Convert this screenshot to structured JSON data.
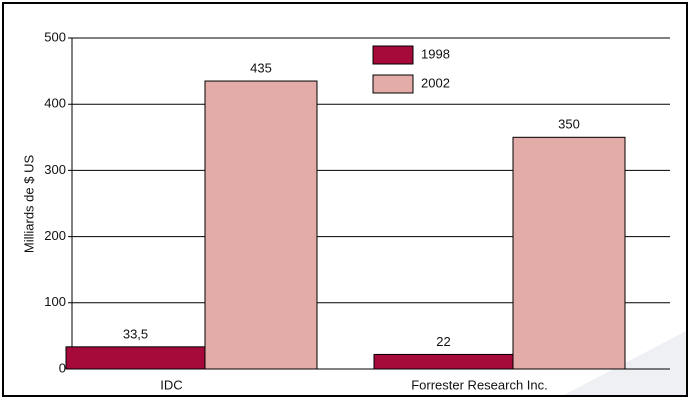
{
  "chart_data": {
    "type": "bar",
    "ylabel": "Milliards de $ US",
    "categories": [
      "IDC",
      "Forrester Research Inc."
    ],
    "series": [
      {
        "name": "1998",
        "color": "#a50a3a",
        "values": [
          33.5,
          22
        ],
        "value_labels": [
          "33,5",
          "22"
        ]
      },
      {
        "name": "2002",
        "color": "#e4aca8",
        "values": [
          435,
          350
        ]
      }
    ],
    "ylim": [
      0,
      500
    ],
    "yticks": [
      0,
      100,
      200,
      300,
      400,
      500
    ],
    "grid": true,
    "legend": "top"
  }
}
